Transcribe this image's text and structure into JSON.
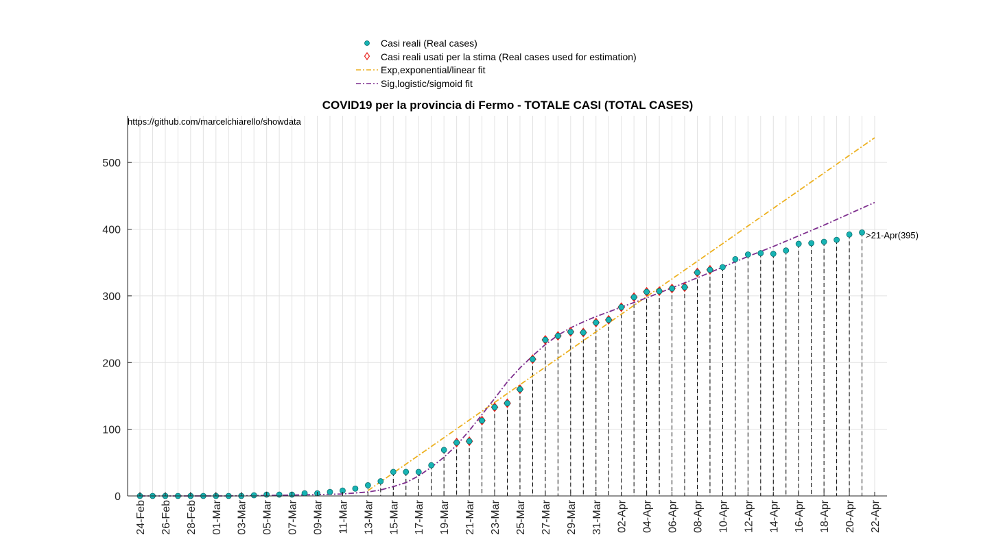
{
  "chart_data": {
    "type": "scatter",
    "title": "COVID19 per la provincia di Fermo - TOTALE CASI (TOTAL CASES)",
    "source_note": "https://github.com/marcelchiarello/showdata",
    "last_point_label": ">21-Apr(395)",
    "xlabel": "",
    "ylabel": "",
    "ylim": [
      0,
      570
    ],
    "yticks": [
      0,
      100,
      200,
      300,
      400,
      500
    ],
    "x_range": [
      "24-Feb",
      "22-Apr"
    ],
    "grid": true,
    "legend_placement": "top-center",
    "xtick_labels": [
      "24-Feb",
      "26-Feb",
      "28-Feb",
      "01-Mar",
      "03-Mar",
      "05-Mar",
      "07-Mar",
      "09-Mar",
      "11-Mar",
      "13-Mar",
      "15-Mar",
      "17-Mar",
      "19-Mar",
      "21-Mar",
      "23-Mar",
      "25-Mar",
      "27-Mar",
      "29-Mar",
      "31-Mar",
      "02-Apr",
      "04-Apr",
      "06-Apr",
      "08-Apr",
      "10-Apr",
      "12-Apr",
      "14-Apr",
      "16-Apr",
      "18-Apr",
      "20-Apr",
      "22-Apr"
    ],
    "legend": [
      {
        "label": "Casi reali (Real cases)",
        "marker": "dot",
        "color": "#17b3b3"
      },
      {
        "label": "Casi reali usati per la stima (Real cases used for estimation)",
        "marker": "diamond",
        "color": "#e8201a"
      },
      {
        "label": "Exp,exponential/linear fit",
        "marker": "dashdot",
        "color": "#edb120"
      },
      {
        "label": "Sig,logistic/sigmoid fit",
        "marker": "dashdot",
        "color": "#7e2f8e"
      }
    ],
    "series": [
      {
        "name": "Casi reali (Real cases)",
        "x": [
          "24-Feb",
          "25-Feb",
          "26-Feb",
          "27-Feb",
          "28-Feb",
          "29-Feb",
          "01-Mar",
          "02-Mar",
          "03-Mar",
          "04-Mar",
          "05-Mar",
          "06-Mar",
          "07-Mar",
          "08-Mar",
          "09-Mar",
          "10-Mar",
          "11-Mar",
          "12-Mar",
          "13-Mar",
          "14-Mar",
          "15-Mar",
          "16-Mar",
          "17-Mar",
          "18-Mar",
          "19-Mar",
          "20-Mar",
          "21-Mar",
          "22-Mar",
          "23-Mar",
          "24-Mar",
          "25-Mar",
          "26-Mar",
          "27-Mar",
          "28-Mar",
          "29-Mar",
          "30-Mar",
          "31-Mar",
          "01-Apr",
          "02-Apr",
          "03-Apr",
          "04-Apr",
          "05-Apr",
          "06-Apr",
          "07-Apr",
          "08-Apr",
          "09-Apr",
          "10-Apr",
          "11-Apr",
          "12-Apr",
          "13-Apr",
          "14-Apr",
          "15-Apr",
          "16-Apr",
          "17-Apr",
          "18-Apr",
          "19-Apr",
          "20-Apr",
          "21-Apr"
        ],
        "y": [
          0,
          0,
          0,
          0,
          0,
          0,
          0,
          0,
          0,
          1,
          2,
          2,
          2,
          4,
          4,
          6,
          8,
          11,
          16,
          22,
          36,
          36,
          36,
          46,
          69,
          80,
          82,
          113,
          133,
          139,
          160,
          205,
          234,
          240,
          246,
          245,
          260,
          264,
          283,
          298,
          306,
          307,
          311,
          313,
          335,
          339,
          343,
          355,
          362,
          364,
          363,
          368,
          378,
          379,
          381,
          384,
          392,
          395
        ],
        "color": "#17b3b3"
      },
      {
        "name": "Casi reali usati per la stima (Real cases used for estimation)",
        "x": [
          "20-Mar",
          "21-Mar",
          "22-Mar",
          "23-Mar",
          "24-Mar",
          "25-Mar",
          "26-Mar",
          "27-Mar",
          "28-Mar",
          "29-Mar",
          "30-Mar",
          "31-Mar",
          "01-Apr",
          "02-Apr",
          "03-Apr",
          "04-Apr",
          "05-Apr",
          "06-Apr",
          "07-Apr",
          "08-Apr",
          "09-Apr"
        ],
        "y": [
          80,
          82,
          113,
          133,
          139,
          160,
          205,
          234,
          240,
          246,
          245,
          260,
          264,
          283,
          298,
          306,
          307,
          311,
          313,
          335,
          339
        ],
        "color": "#e8201a"
      },
      {
        "name": "Exp,exponential/linear fit",
        "x": [
          "13-Mar",
          "22-Apr"
        ],
        "y": [
          8,
          537
        ],
        "color": "#edb120"
      },
      {
        "name": "Sig,logistic/sigmoid fit",
        "x": [
          "24-Feb",
          "02-Mar",
          "06-Mar",
          "09-Mar",
          "11-Mar",
          "13-Mar",
          "14-Mar",
          "15-Mar",
          "16-Mar",
          "17-Mar",
          "18-Mar",
          "19-Mar",
          "20-Mar",
          "21-Mar",
          "22-Mar",
          "23-Mar",
          "24-Mar",
          "25-Mar",
          "26-Mar",
          "27-Mar",
          "28-Mar",
          "29-Mar",
          "30-Mar",
          "31-Mar",
          "01-Apr",
          "02-Apr",
          "03-Apr",
          "04-Apr",
          "06-Apr",
          "08-Apr",
          "10-Apr",
          "12-Apr",
          "14-Apr",
          "16-Apr",
          "18-Apr",
          "20-Apr",
          "22-Apr"
        ],
        "y": [
          0,
          0,
          1,
          2,
          3,
          6,
          9,
          14,
          20,
          30,
          43,
          58,
          76,
          98,
          122,
          146,
          171,
          192,
          210,
          227,
          241,
          252,
          261,
          269,
          276,
          283,
          290,
          297,
          312,
          327,
          343,
          359,
          374,
          390,
          406,
          423,
          440
        ],
        "color": "#7e2f8e"
      }
    ]
  }
}
